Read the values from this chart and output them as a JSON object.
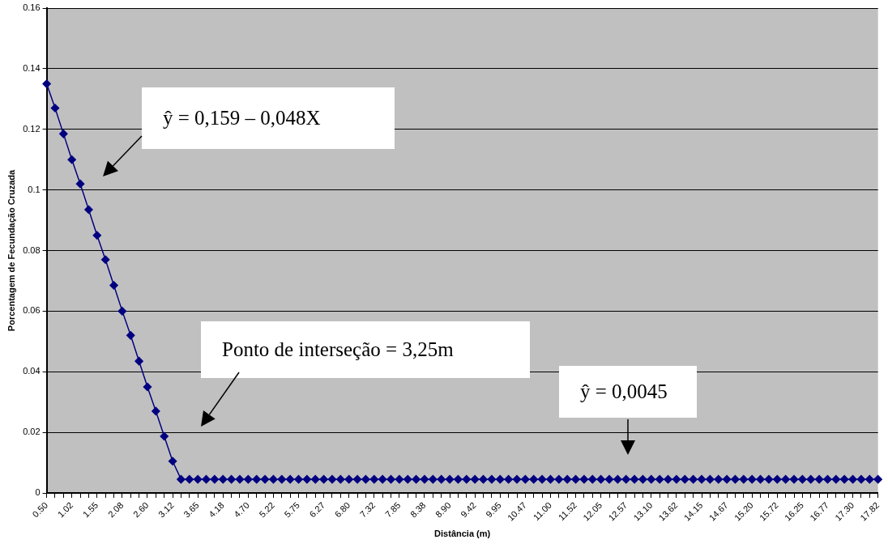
{
  "chart_data": {
    "type": "line",
    "xlabel": "Distância (m)",
    "ylabel": "Porcentagem de Fecundação Cruzada",
    "categories": [
      "0.50",
      null,
      null,
      "1.02",
      null,
      null,
      "1.55",
      null,
      null,
      "2.08",
      null,
      null,
      "2.60",
      null,
      null,
      "3.12",
      null,
      null,
      "3.65",
      null,
      null,
      "4.18",
      null,
      null,
      "4.70",
      null,
      null,
      "5.22",
      null,
      null,
      "5.75",
      null,
      null,
      "6.27",
      null,
      null,
      "6.80",
      null,
      null,
      "7.32",
      null,
      null,
      "7.85",
      null,
      null,
      "8.38",
      null,
      null,
      "8.90",
      null,
      null,
      "9.42",
      null,
      null,
      "9.95",
      null,
      null,
      "10.47",
      null,
      null,
      "11.00",
      null,
      null,
      "11.52",
      null,
      null,
      "12.05",
      null,
      null,
      "12.57",
      null,
      null,
      "13.10",
      null,
      null,
      "13.62",
      null,
      null,
      "14.15",
      null,
      null,
      "14.67",
      null,
      null,
      "15.20",
      null,
      null,
      "15.72",
      null,
      null,
      "16.25",
      null,
      null,
      "16.77",
      null,
      null,
      "17.30",
      null,
      null,
      "17.82"
    ],
    "series": [
      {
        "color": "#000080",
        "values": [
          0.135,
          0.127,
          0.1185,
          0.11,
          0.102,
          0.0935,
          0.085,
          0.077,
          0.0685,
          0.06,
          0.052,
          0.0435,
          0.035,
          0.027,
          0.0187,
          0.0105,
          0.0045,
          0.0045,
          0.0045,
          0.0045,
          0.0045,
          0.0045,
          0.0045,
          0.0045,
          0.0045,
          0.0045,
          0.0045,
          0.0045,
          0.0045,
          0.0045,
          0.0045,
          0.0045,
          0.0045,
          0.0045,
          0.0045,
          0.0045,
          0.0045,
          0.0045,
          0.0045,
          0.0045,
          0.0045,
          0.0045,
          0.0045,
          0.0045,
          0.0045,
          0.0045,
          0.0045,
          0.0045,
          0.0045,
          0.0045,
          0.0045,
          0.0045,
          0.0045,
          0.0045,
          0.0045,
          0.0045,
          0.0045,
          0.0045,
          0.0045,
          0.0045,
          0.0045,
          0.0045,
          0.0045,
          0.0045,
          0.0045,
          0.0045,
          0.0045,
          0.0045,
          0.0045,
          0.0045,
          0.0045,
          0.0045,
          0.0045,
          0.0045,
          0.0045,
          0.0045,
          0.0045,
          0.0045,
          0.0045,
          0.0045,
          0.0045,
          0.0045,
          0.0045,
          0.0045,
          0.0045,
          0.0045,
          0.0045,
          0.0045,
          0.0045,
          0.0045,
          0.0045,
          0.0045,
          0.0045,
          0.0045,
          0.0045,
          0.0045,
          0.0045,
          0.0045,
          0.0045,
          0.0045
        ]
      }
    ],
    "ylim": [
      0,
      0.16
    ],
    "yticks": [
      0,
      0.02,
      0.04,
      0.06,
      0.08,
      0.1,
      0.12,
      0.14,
      0.16
    ],
    "grid": "y",
    "legend": false,
    "marker": "diamond",
    "line_style": "solid",
    "annotations": [
      "ŷ = 0,159 – 0,048X",
      "Ponto de interseção = 3,25m",
      "ŷ = 0,0045"
    ]
  }
}
